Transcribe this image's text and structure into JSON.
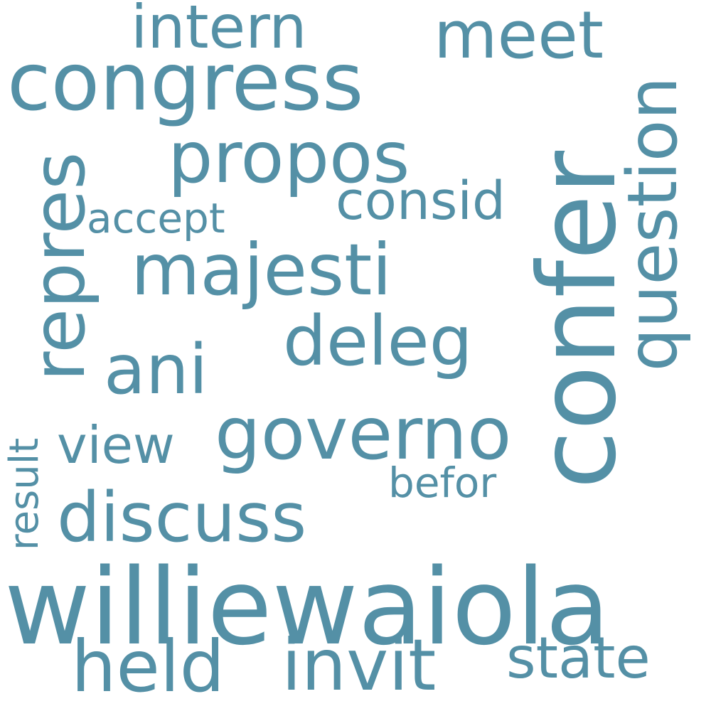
{
  "word_color": "#5490a6",
  "background_color": "#ffffff",
  "words": {
    "williewaiola": "williewaiola",
    "confer": "confer",
    "congress": "congress",
    "governo": "governo",
    "majesti": "majesti",
    "propos": "propos",
    "discuss": "discuss",
    "repres": "repres",
    "question": "question",
    "deleg": "deleg",
    "ani": "ani",
    "meet": "meet",
    "intern": "intern",
    "invit": "invit",
    "held": "held",
    "state": "state",
    "consid": "consid",
    "view": "view",
    "accept": "accept",
    "befor": "befor",
    "result": "result"
  }
}
